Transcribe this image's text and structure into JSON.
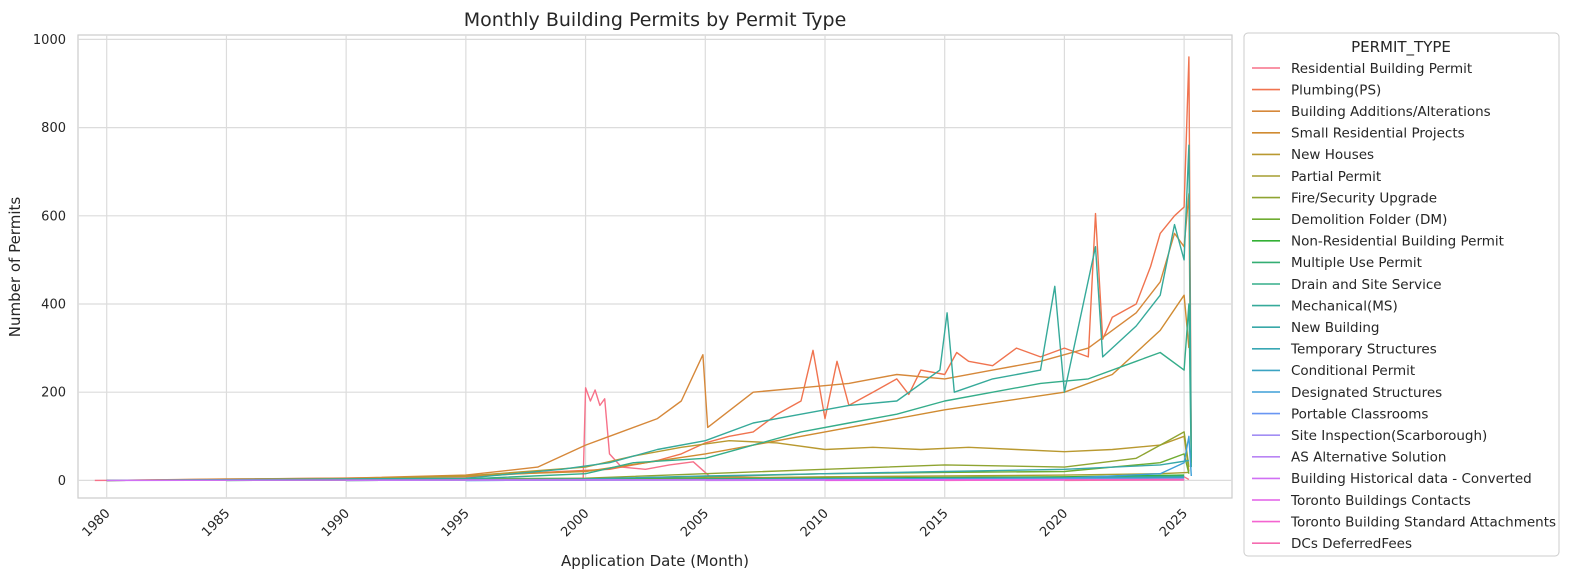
{
  "chart_data": {
    "type": "line",
    "title": "Monthly Building Permits by Permit Type",
    "xlabel": "Application Date (Month)",
    "ylabel": "Number of Permits",
    "xlim": [
      1978.8,
      2027.0
    ],
    "ylim": [
      -40,
      1010
    ],
    "x_ticks": [
      1980,
      1985,
      1990,
      1995,
      2000,
      2005,
      2010,
      2015,
      2020,
      2025
    ],
    "x_tick_labels": [
      "1980",
      "1985",
      "1990",
      "1995",
      "2000",
      "2005",
      "2010",
      "2015",
      "2020",
      "2025"
    ],
    "y_ticks": [
      0,
      200,
      400,
      600,
      800,
      1000
    ],
    "y_tick_labels": [
      "0",
      "200",
      "400",
      "600",
      "800",
      "1000"
    ],
    "grid": true,
    "legend_title": "PERMIT_TYPE",
    "legend_position": "outside-right",
    "series": [
      {
        "name": "Residential Building Permit",
        "color": "#f77189",
        "points": [
          [
            1979.5,
            0
          ],
          [
            1995,
            1
          ],
          [
            1998,
            2
          ],
          [
            1999.9,
            5
          ],
          [
            2000.0,
            210
          ],
          [
            2000.2,
            180
          ],
          [
            2000.4,
            205
          ],
          [
            2000.6,
            170
          ],
          [
            2000.8,
            185
          ],
          [
            2001.0,
            60
          ],
          [
            2001.5,
            30
          ],
          [
            2002.5,
            25
          ],
          [
            2003.5,
            35
          ],
          [
            2004.5,
            42
          ],
          [
            2005.2,
            8
          ],
          [
            2010,
            4
          ],
          [
            2015,
            6
          ],
          [
            2020,
            5
          ],
          [
            2025,
            8
          ],
          [
            2025.2,
            2
          ]
        ]
      },
      {
        "name": "Plumbing(PS)",
        "color": "#f0734f",
        "points": [
          [
            1980,
            0
          ],
          [
            1995,
            8
          ],
          [
            1999,
            20
          ],
          [
            2001,
            25
          ],
          [
            2003,
            45
          ],
          [
            2004,
            60
          ],
          [
            2005,
            85
          ],
          [
            2006,
            100
          ],
          [
            2007,
            110
          ],
          [
            2008,
            150
          ],
          [
            2009,
            180
          ],
          [
            2009.5,
            295
          ],
          [
            2010,
            140
          ],
          [
            2010.5,
            270
          ],
          [
            2011,
            170
          ],
          [
            2012,
            200
          ],
          [
            2013,
            230
          ],
          [
            2013.5,
            195
          ],
          [
            2014,
            250
          ],
          [
            2015,
            240
          ],
          [
            2015.5,
            290
          ],
          [
            2016,
            270
          ],
          [
            2017,
            260
          ],
          [
            2018,
            300
          ],
          [
            2019,
            280
          ],
          [
            2020,
            300
          ],
          [
            2021,
            280
          ],
          [
            2021.3,
            605
          ],
          [
            2021.6,
            320
          ],
          [
            2022,
            370
          ],
          [
            2023,
            400
          ],
          [
            2023.6,
            485
          ],
          [
            2024,
            560
          ],
          [
            2024.6,
            600
          ],
          [
            2025,
            620
          ],
          [
            2025.2,
            960
          ],
          [
            2025.3,
            50
          ]
        ]
      },
      {
        "name": "Building Additions/Alterations",
        "color": "#d6883a",
        "points": [
          [
            1980,
            0
          ],
          [
            1985,
            3
          ],
          [
            1990,
            5
          ],
          [
            1995,
            12
          ],
          [
            1998,
            30
          ],
          [
            2000,
            80
          ],
          [
            2001,
            100
          ],
          [
            2003,
            140
          ],
          [
            2004,
            180
          ],
          [
            2004.9,
            285
          ],
          [
            2005.1,
            120
          ],
          [
            2007,
            200
          ],
          [
            2009,
            210
          ],
          [
            2011,
            220
          ],
          [
            2013,
            240
          ],
          [
            2015,
            230
          ],
          [
            2017,
            250
          ],
          [
            2019,
            270
          ],
          [
            2021,
            300
          ],
          [
            2023,
            380
          ],
          [
            2024,
            450
          ],
          [
            2024.6,
            560
          ],
          [
            2025,
            530
          ],
          [
            2025.2,
            650
          ],
          [
            2025.3,
            40
          ]
        ]
      },
      {
        "name": "Small Residential Projects",
        "color": "#d08b31",
        "points": [
          [
            1990,
            2
          ],
          [
            2000,
            20
          ],
          [
            2005,
            60
          ],
          [
            2010,
            110
          ],
          [
            2015,
            160
          ],
          [
            2020,
            200
          ],
          [
            2022,
            240
          ],
          [
            2024,
            340
          ],
          [
            2025,
            420
          ],
          [
            2025.2,
            300
          ]
        ]
      },
      {
        "name": "New Houses",
        "color": "#b99930",
        "points": [
          [
            1980,
            0
          ],
          [
            1990,
            3
          ],
          [
            1995,
            10
          ],
          [
            2000,
            30
          ],
          [
            2002,
            55
          ],
          [
            2004,
            75
          ],
          [
            2006,
            90
          ],
          [
            2008,
            85
          ],
          [
            2010,
            70
          ],
          [
            2012,
            75
          ],
          [
            2014,
            70
          ],
          [
            2016,
            75
          ],
          [
            2018,
            70
          ],
          [
            2020,
            65
          ],
          [
            2022,
            70
          ],
          [
            2024,
            80
          ],
          [
            2025,
            100
          ],
          [
            2025.2,
            20
          ]
        ]
      },
      {
        "name": "Partial Permit",
        "color": "#a69d31",
        "points": [
          [
            1990,
            0
          ],
          [
            2000,
            2
          ],
          [
            2005,
            5
          ],
          [
            2010,
            8
          ],
          [
            2015,
            10
          ],
          [
            2020,
            12
          ],
          [
            2024,
            15
          ],
          [
            2025.2,
            18
          ]
        ]
      },
      {
        "name": "Fire/Security Upgrade",
        "color": "#8fa431",
        "points": [
          [
            1980,
            0
          ],
          [
            2000,
            5
          ],
          [
            2005,
            15
          ],
          [
            2010,
            25
          ],
          [
            2015,
            35
          ],
          [
            2020,
            30
          ],
          [
            2023,
            50
          ],
          [
            2024,
            80
          ],
          [
            2025,
            110
          ],
          [
            2025.2,
            30
          ]
        ]
      },
      {
        "name": "Demolition Folder (DM)",
        "color": "#6fac31",
        "points": [
          [
            1980,
            0
          ],
          [
            2000,
            3
          ],
          [
            2005,
            8
          ],
          [
            2010,
            15
          ],
          [
            2015,
            18
          ],
          [
            2020,
            20
          ],
          [
            2024,
            40
          ],
          [
            2025,
            60
          ],
          [
            2025.2,
            15
          ]
        ]
      },
      {
        "name": "Non-Residential Building Permit",
        "color": "#33b035",
        "points": [
          [
            1985,
            0
          ],
          [
            2000,
            2
          ],
          [
            2010,
            5
          ],
          [
            2020,
            8
          ],
          [
            2025,
            12
          ]
        ]
      },
      {
        "name": "Multiple Use Permit",
        "color": "#34ae73",
        "points": [
          [
            1990,
            0
          ],
          [
            2000,
            1
          ],
          [
            2010,
            4
          ],
          [
            2020,
            6
          ],
          [
            2025,
            10
          ]
        ]
      },
      {
        "name": "Drain and Site Service",
        "color": "#35ad8a",
        "points": [
          [
            1980,
            0
          ],
          [
            1995,
            3
          ],
          [
            2000,
            15
          ],
          [
            2002,
            40
          ],
          [
            2005,
            50
          ],
          [
            2007,
            80
          ],
          [
            2009,
            110
          ],
          [
            2011,
            130
          ],
          [
            2013,
            150
          ],
          [
            2015,
            180
          ],
          [
            2017,
            200
          ],
          [
            2019,
            220
          ],
          [
            2021,
            230
          ],
          [
            2023,
            270
          ],
          [
            2024,
            290
          ],
          [
            2025,
            250
          ],
          [
            2025.2,
            400
          ],
          [
            2025.3,
            30
          ]
        ]
      },
      {
        "name": "Mechanical(MS)",
        "color": "#36aa9a",
        "points": [
          [
            1980,
            0
          ],
          [
            1995,
            5
          ],
          [
            1999,
            25
          ],
          [
            2001,
            40
          ],
          [
            2003,
            70
          ],
          [
            2005,
            90
          ],
          [
            2007,
            130
          ],
          [
            2009,
            150
          ],
          [
            2011,
            170
          ],
          [
            2013,
            180
          ],
          [
            2014.8,
            250
          ],
          [
            2015.1,
            380
          ],
          [
            2015.4,
            200
          ],
          [
            2017,
            230
          ],
          [
            2019,
            250
          ],
          [
            2019.6,
            440
          ],
          [
            2020,
            200
          ],
          [
            2021.3,
            530
          ],
          [
            2021.6,
            280
          ],
          [
            2023,
            350
          ],
          [
            2024,
            420
          ],
          [
            2024.6,
            580
          ],
          [
            2025,
            500
          ],
          [
            2025.2,
            760
          ],
          [
            2025.3,
            50
          ]
        ]
      },
      {
        "name": "New Building",
        "color": "#38a8a8",
        "points": [
          [
            1985,
            0
          ],
          [
            2000,
            3
          ],
          [
            2005,
            10
          ],
          [
            2010,
            15
          ],
          [
            2015,
            20
          ],
          [
            2020,
            25
          ],
          [
            2024,
            35
          ],
          [
            2025.2,
            45
          ]
        ]
      },
      {
        "name": "Temporary Structures",
        "color": "#39a7b4",
        "points": [
          [
            1990,
            0
          ],
          [
            2000,
            1
          ],
          [
            2010,
            3
          ],
          [
            2020,
            5
          ],
          [
            2025,
            8
          ]
        ]
      },
      {
        "name": "Conditional Permit",
        "color": "#3ba3c2",
        "points": [
          [
            1995,
            0
          ],
          [
            2005,
            2
          ],
          [
            2015,
            4
          ],
          [
            2025,
            6
          ]
        ]
      },
      {
        "name": "Designated Structures",
        "color": "#3e9fd7",
        "points": [
          [
            1995,
            0
          ],
          [
            2010,
            2
          ],
          [
            2020,
            5
          ],
          [
            2024,
            15
          ],
          [
            2025,
            40
          ],
          [
            2025.2,
            100
          ],
          [
            2025.3,
            10
          ]
        ]
      },
      {
        "name": "Portable Classrooms",
        "color": "#6996f3",
        "points": [
          [
            1995,
            0
          ],
          [
            2005,
            1
          ],
          [
            2015,
            2
          ],
          [
            2025,
            3
          ]
        ]
      },
      {
        "name": "Site Inspection(Scarborough)",
        "color": "#a28ef4",
        "points": [
          [
            1990,
            0
          ],
          [
            2000,
            1
          ],
          [
            2010,
            1
          ],
          [
            2020,
            2
          ],
          [
            2025,
            2
          ]
        ]
      },
      {
        "name": "AS Alternative Solution",
        "color": "#b985f4",
        "points": [
          [
            2005,
            0
          ],
          [
            2015,
            1
          ],
          [
            2025,
            2
          ]
        ]
      },
      {
        "name": "Building Historical data - Converted",
        "color": "#d070f4",
        "points": [
          [
            1980,
            0
          ],
          [
            1995,
            1
          ],
          [
            2010,
            1
          ],
          [
            2025,
            1
          ]
        ]
      },
      {
        "name": "Toronto Buildings Contacts",
        "color": "#e25fe7",
        "points": [
          [
            2010,
            0
          ],
          [
            2020,
            1
          ],
          [
            2025,
            1
          ]
        ]
      },
      {
        "name": "Toronto Building Standard Attachments",
        "color": "#f464d0",
        "points": [
          [
            2015,
            0
          ],
          [
            2020,
            1
          ],
          [
            2025,
            2
          ]
        ]
      },
      {
        "name": "DCs DeferredFees",
        "color": "#f56cb0",
        "points": [
          [
            2020,
            0
          ],
          [
            2025,
            1
          ]
        ]
      }
    ]
  }
}
